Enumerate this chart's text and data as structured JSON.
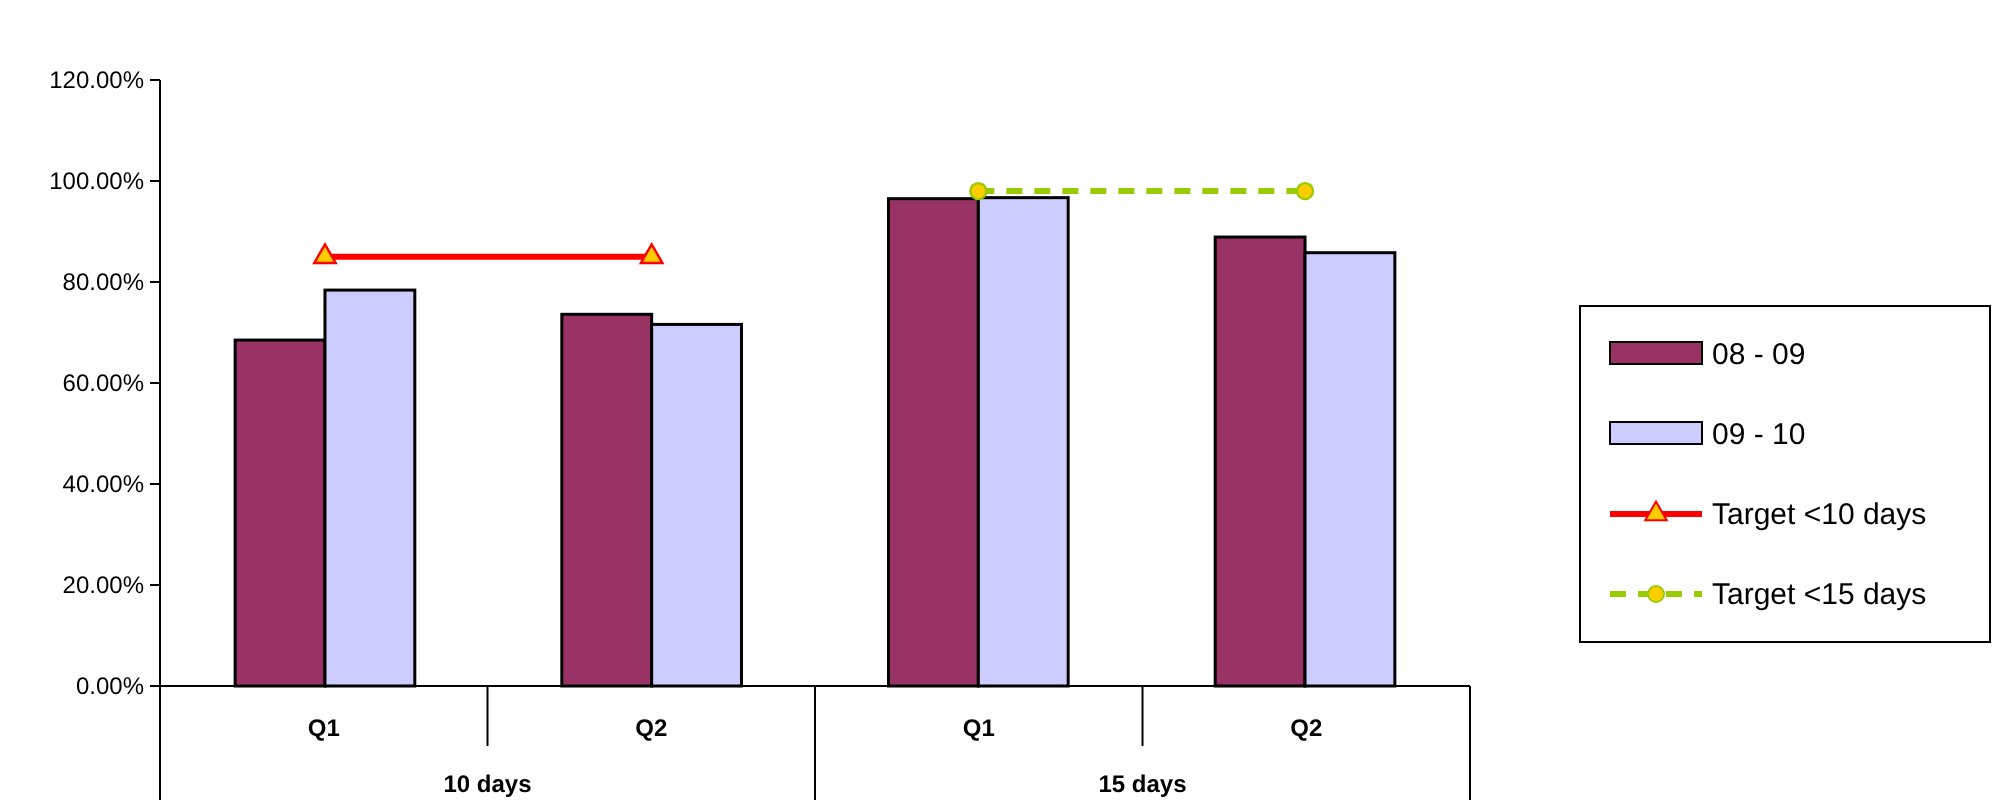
{
  "chart_data": {
    "type": "bar",
    "categories": [
      "Q1",
      "Q2",
      "Q1",
      "Q2"
    ],
    "series": [
      {
        "name": "08 - 09",
        "color": "#993366",
        "values": [
          68.5,
          73.6,
          96.5,
          88.9
        ]
      },
      {
        "name": "09 - 10",
        "color": "#ccccff",
        "values": [
          78.4,
          71.6,
          96.7,
          85.8
        ]
      },
      {
        "name": "Target <10 days",
        "type": "line",
        "color": "#ff0000",
        "marker": "triangle",
        "line_style": "solid",
        "values": [
          85,
          85,
          null,
          null
        ]
      },
      {
        "name": "Target <15 days",
        "type": "line",
        "color": "#99cc00",
        "marker": "circle",
        "line_style": "dashed",
        "values": [
          null,
          null,
          98,
          98
        ]
      }
    ],
    "annotations": [
      "10 days",
      "15 days"
    ],
    "ylim": [
      0,
      120
    ],
    "yticks": [
      {
        "value": 0,
        "label": "0.00%"
      },
      {
        "value": 20,
        "label": "20.00%"
      },
      {
        "value": 40,
        "label": "40.00%"
      },
      {
        "value": 60,
        "label": "60.00%"
      },
      {
        "value": 80,
        "label": "80.00%"
      },
      {
        "value": 100,
        "label": "100.00%"
      },
      {
        "value": 120,
        "label": "120.00%"
      }
    ],
    "grid": false,
    "legend": "right"
  }
}
